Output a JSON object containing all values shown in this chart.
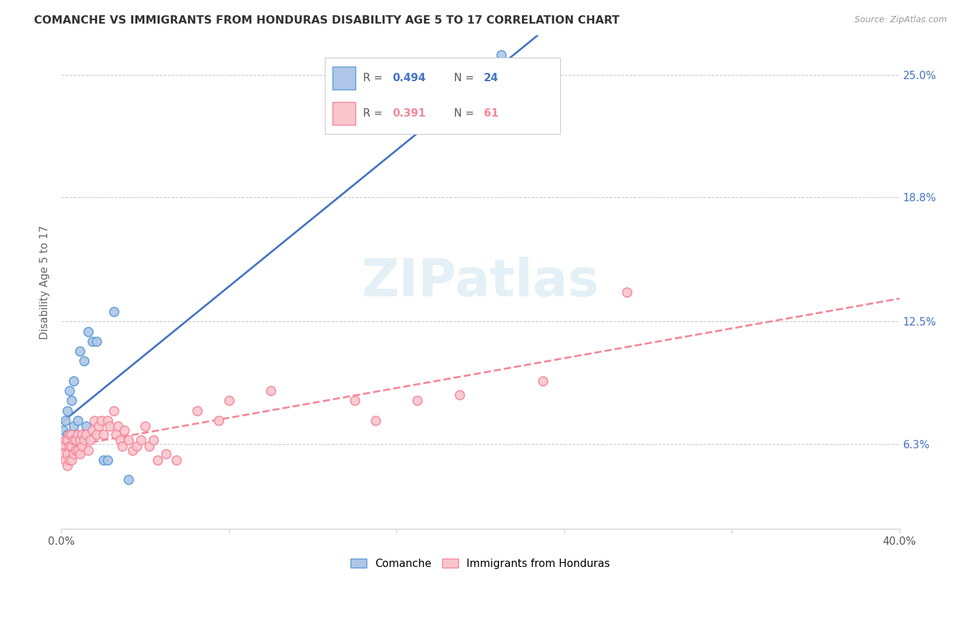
{
  "title": "COMANCHE VS IMMIGRANTS FROM HONDURAS DISABILITY AGE 5 TO 17 CORRELATION CHART",
  "source": "Source: ZipAtlas.com",
  "ylabel": "Disability Age 5 to 17",
  "ytick_labels": [
    "6.3%",
    "12.5%",
    "18.8%",
    "25.0%"
  ],
  "ytick_values": [
    0.063,
    0.125,
    0.188,
    0.25
  ],
  "xlim": [
    0.0,
    0.4
  ],
  "ylim": [
    0.02,
    0.27
  ],
  "legend_blue_r": "0.494",
  "legend_blue_n": "24",
  "legend_pink_r": "0.391",
  "legend_pink_n": "61",
  "blue_fill_color": "#aec6e8",
  "blue_edge_color": "#5b9bd5",
  "pink_fill_color": "#f9c6ce",
  "pink_edge_color": "#f4879a",
  "blue_line_color": "#4472c4",
  "pink_line_color": "#e85d8a",
  "watermark": "ZIPatlas",
  "comanche_x": [
    0.001,
    0.002,
    0.003,
    0.003,
    0.004,
    0.004,
    0.005,
    0.005,
    0.006,
    0.006,
    0.007,
    0.008,
    0.009,
    0.01,
    0.011,
    0.012,
    0.013,
    0.015,
    0.017,
    0.02,
    0.022,
    0.025,
    0.032,
    0.21
  ],
  "comanche_y": [
    0.07,
    0.075,
    0.068,
    0.08,
    0.065,
    0.09,
    0.065,
    0.085,
    0.072,
    0.095,
    0.068,
    0.075,
    0.11,
    0.068,
    0.105,
    0.072,
    0.12,
    0.115,
    0.115,
    0.055,
    0.055,
    0.13,
    0.045,
    0.26
  ],
  "honduras_x": [
    0.001,
    0.001,
    0.002,
    0.002,
    0.003,
    0.003,
    0.003,
    0.004,
    0.004,
    0.004,
    0.005,
    0.005,
    0.005,
    0.006,
    0.006,
    0.007,
    0.007,
    0.008,
    0.008,
    0.009,
    0.009,
    0.01,
    0.01,
    0.011,
    0.012,
    0.013,
    0.014,
    0.015,
    0.016,
    0.017,
    0.018,
    0.019,
    0.02,
    0.022,
    0.023,
    0.025,
    0.026,
    0.027,
    0.028,
    0.029,
    0.03,
    0.032,
    0.034,
    0.036,
    0.038,
    0.04,
    0.042,
    0.044,
    0.046,
    0.05,
    0.055,
    0.065,
    0.075,
    0.08,
    0.1,
    0.14,
    0.15,
    0.17,
    0.19,
    0.23,
    0.27
  ],
  "honduras_y": [
    0.058,
    0.063,
    0.055,
    0.065,
    0.052,
    0.058,
    0.065,
    0.055,
    0.062,
    0.068,
    0.055,
    0.062,
    0.068,
    0.058,
    0.065,
    0.06,
    0.065,
    0.06,
    0.068,
    0.058,
    0.065,
    0.062,
    0.068,
    0.065,
    0.068,
    0.06,
    0.065,
    0.07,
    0.075,
    0.068,
    0.072,
    0.075,
    0.068,
    0.075,
    0.072,
    0.08,
    0.068,
    0.072,
    0.065,
    0.062,
    0.07,
    0.065,
    0.06,
    0.062,
    0.065,
    0.072,
    0.062,
    0.065,
    0.055,
    0.058,
    0.055,
    0.08,
    0.075,
    0.085,
    0.09,
    0.085,
    0.075,
    0.085,
    0.088,
    0.095,
    0.14
  ]
}
